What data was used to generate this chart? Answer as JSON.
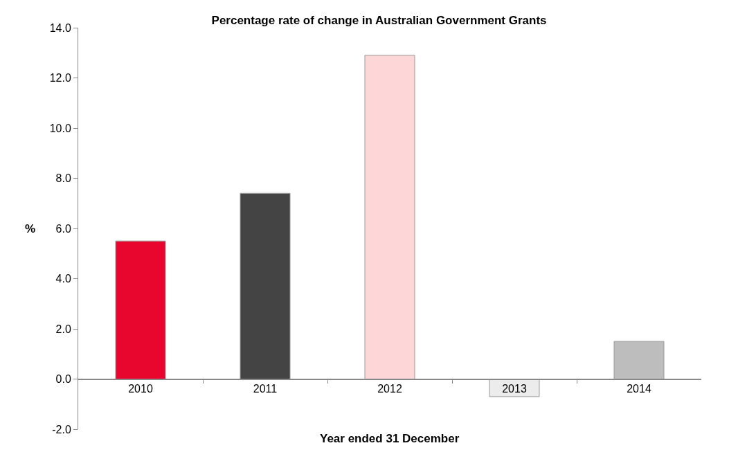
{
  "chart_data": {
    "type": "bar",
    "title": "Percentage rate of change in Australian Government Grants",
    "xlabel": "Year ended 31 December",
    "ylabel": "%",
    "categories": [
      "2010",
      "2011",
      "2012",
      "2013",
      "2014"
    ],
    "values": [
      5.5,
      7.4,
      12.9,
      -0.7,
      1.5
    ],
    "colors": [
      "#e8062f",
      "#444444",
      "#fdd6d7",
      "#ececec",
      "#bdbdbd"
    ],
    "ylim": [
      -2,
      14
    ],
    "yticks": [
      {
        "value": -2,
        "label": "-2.0"
      },
      {
        "value": 0,
        "label": "0.0"
      },
      {
        "value": 2,
        "label": "2.0"
      },
      {
        "value": 4,
        "label": "4.0"
      },
      {
        "value": 6,
        "label": "6.0"
      },
      {
        "value": 8,
        "label": "8.0"
      },
      {
        "value": 10,
        "label": "10.0"
      },
      {
        "value": 12,
        "label": "12.0"
      },
      {
        "value": 14,
        "label": "14.0"
      }
    ],
    "grid": false
  }
}
